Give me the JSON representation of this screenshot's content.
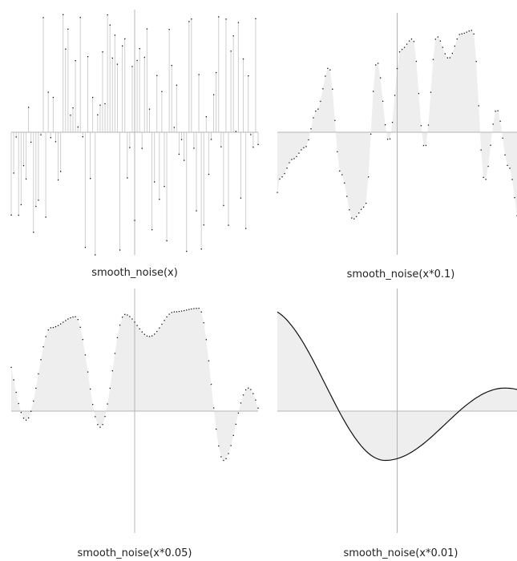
{
  "chart_data": [
    {
      "type": "area",
      "title": "smooth_noise(x)",
      "xlabel": "",
      "ylabel": "",
      "grid": false,
      "ylim": [
        -1,
        1
      ],
      "x_range": [
        -100,
        100
      ],
      "sample_step": 2,
      "rendering": "stems with dots",
      "series": [
        {
          "frequency": 1
        }
      ]
    },
    {
      "type": "area",
      "title": "smooth_noise(x*0.1)",
      "xlabel": "",
      "ylabel": "",
      "grid": false,
      "ylim": [
        -1,
        1
      ],
      "x_range": [
        -100,
        100
      ],
      "sample_step": 2,
      "rendering": "filled area with dots",
      "series": [
        {
          "frequency": 0.1
        }
      ]
    },
    {
      "type": "area",
      "title": "smooth_noise(x*0.05)",
      "xlabel": "",
      "ylabel": "",
      "grid": false,
      "ylim": [
        -1,
        1
      ],
      "x_range": [
        -100,
        100
      ],
      "sample_step": 2,
      "rendering": "filled area with dots",
      "series": [
        {
          "frequency": 0.05
        }
      ]
    },
    {
      "type": "area",
      "title": "smooth_noise(x*0.01)",
      "xlabel": "",
      "ylabel": "",
      "grid": false,
      "ylim": [
        -1,
        1
      ],
      "x_range": [
        -100,
        100
      ],
      "sample_step": 2,
      "rendering": "filled area with line",
      "series": [
        {
          "frequency": 0.01
        }
      ]
    }
  ],
  "colors": {
    "fill": "#eeeeee",
    "stem": "#cfcfcf",
    "axis": "#b4b4b4",
    "dot": "#111111",
    "line": "#111111"
  }
}
